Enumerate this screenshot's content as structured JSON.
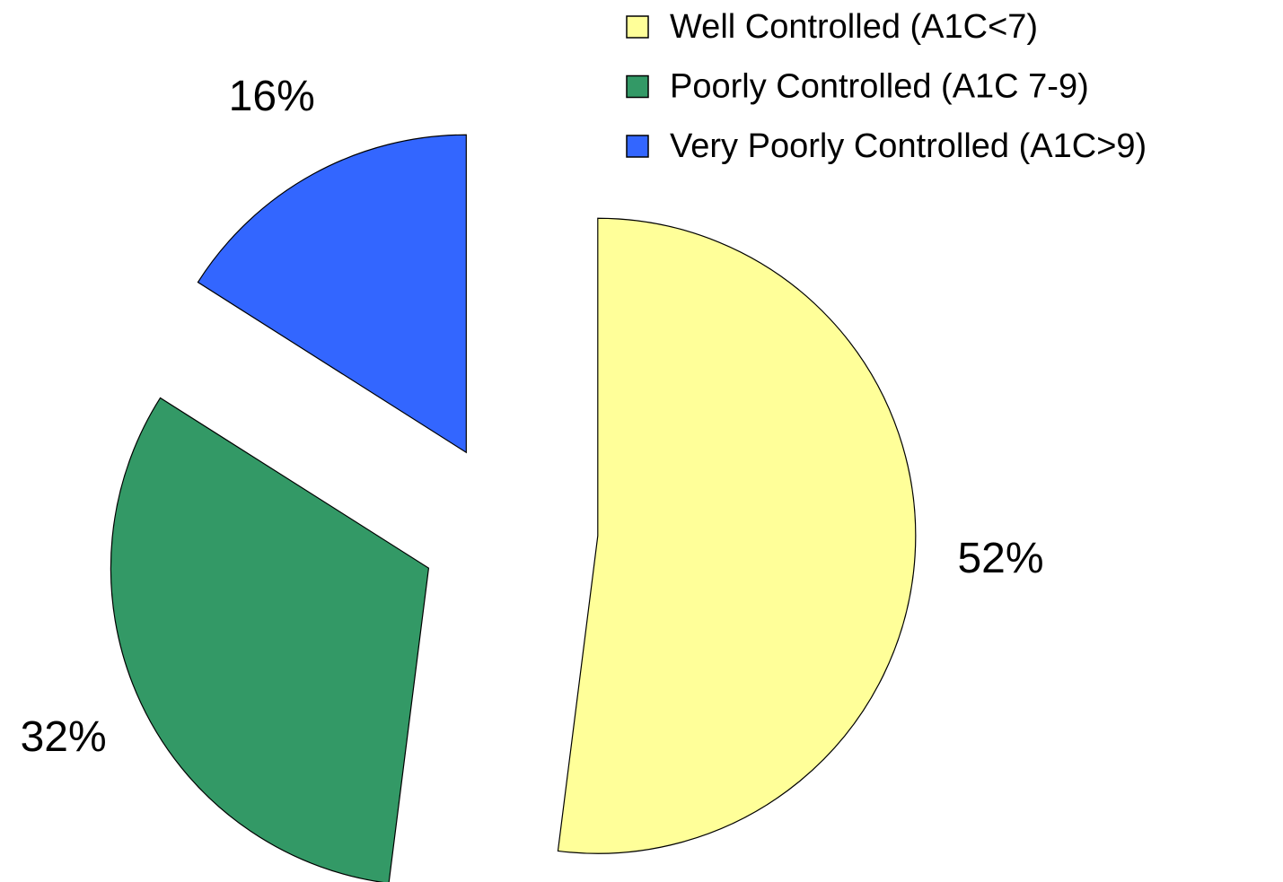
{
  "chart_data": {
    "type": "pie",
    "categories": [
      "Well Controlled  (A1C<7)",
      "Poorly Controlled (A1C 7-9)",
      "Very Poorly Controlled (A1C>9)"
    ],
    "values": [
      52,
      32,
      16
    ],
    "value_labels": [
      "52%",
      "32%",
      "16%"
    ],
    "colors": [
      "#ffff99",
      "#339966",
      "#3366ff"
    ],
    "exploded": true,
    "legend": "top-right"
  }
}
